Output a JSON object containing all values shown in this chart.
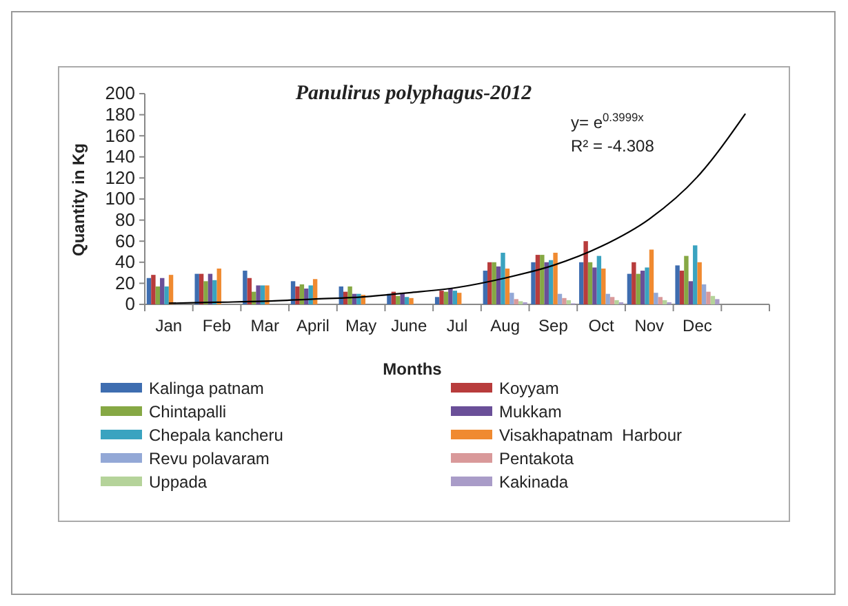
{
  "chart_data": {
    "type": "bar",
    "title": "Panulirus polyphagus-2012",
    "xlabel": "Months",
    "ylabel": "Quantity in Kg",
    "categories": [
      "Jan",
      "Feb",
      "Mar",
      "April",
      "May",
      "June",
      "Jul",
      "Aug",
      "Sep",
      "Oct",
      "Nov",
      "Dec",
      null
    ],
    "ylim": [
      0,
      200
    ],
    "yticks": [
      0,
      20,
      40,
      60,
      80,
      100,
      120,
      140,
      160,
      180,
      200
    ],
    "legend": "bottom",
    "annotations": [
      "y= e$^{0.3999x}$",
      "R² = -4.308"
    ],
    "series": [
      {
        "name": "Kalinga patnam",
        "color": "#3e6db0",
        "values": [
          25,
          29,
          32,
          22,
          17,
          10,
          7,
          32,
          40,
          40,
          29,
          37,
          null
        ]
      },
      {
        "name": "Koyyam",
        "color": "#b83c3c",
        "values": [
          28,
          29,
          25,
          17,
          12,
          12,
          13,
          40,
          47,
          60,
          40,
          32,
          null
        ]
      },
      {
        "name": "Chintapalli",
        "color": "#86a844",
        "values": [
          17,
          22,
          12,
          19,
          17,
          8,
          12,
          40,
          47,
          40,
          29,
          46,
          null
        ]
      },
      {
        "name": "Mukkam",
        "color": "#6a4f98",
        "values": [
          25,
          29,
          18,
          15,
          10,
          11,
          15,
          36,
          40,
          35,
          32,
          22,
          null
        ]
      },
      {
        "name": "Chepala kancheru",
        "color": "#3aa3c0",
        "values": [
          17,
          23,
          18,
          18,
          10,
          7,
          13,
          49,
          42,
          46,
          35,
          56,
          null
        ]
      },
      {
        "name": "Visakhapatnam  Harbour",
        "color": "#f08a30",
        "values": [
          28,
          34,
          18,
          24,
          9,
          6,
          11,
          34,
          49,
          34,
          52,
          40,
          null
        ]
      },
      {
        "name": "Revu polavaram",
        "color": "#93a8d6",
        "values": [
          null,
          null,
          null,
          null,
          null,
          null,
          null,
          11,
          10,
          10,
          11,
          19,
          null
        ]
      },
      {
        "name": "Pentakota",
        "color": "#d9999a",
        "values": [
          null,
          null,
          null,
          null,
          null,
          null,
          null,
          5,
          6,
          7,
          7,
          12,
          null
        ]
      },
      {
        "name": "Uppada",
        "color": "#b5d39a",
        "values": [
          null,
          null,
          null,
          null,
          null,
          null,
          null,
          3,
          4,
          4,
          4,
          8,
          null
        ]
      },
      {
        "name": "Kakinada",
        "color": "#a99cc8",
        "values": [
          null,
          null,
          null,
          null,
          null,
          null,
          null,
          2,
          1,
          2,
          2,
          5,
          null
        ]
      },
      {
        "type": "line",
        "color": "#000000",
        "values": [
          1,
          2,
          3,
          5,
          7,
          11,
          16,
          25,
          37,
          55,
          81,
          121,
          181
        ]
      }
    ]
  }
}
